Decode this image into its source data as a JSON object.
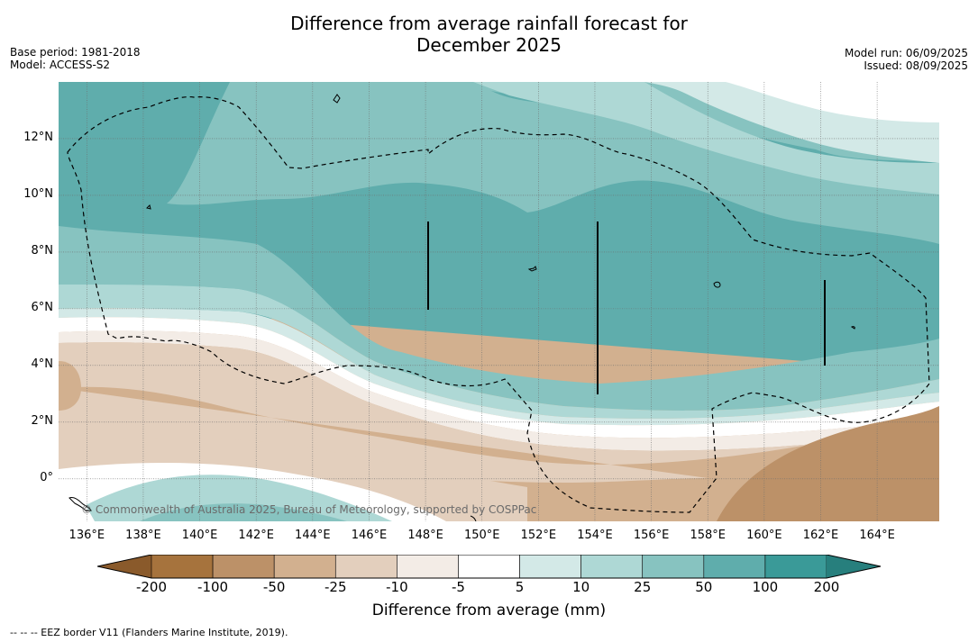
{
  "title_line1": "Difference from average rainfall forecast for",
  "title_line2": "December 2025",
  "meta_left": [
    "Base period: 1981-2018",
    "Model: ACCESS-S2"
  ],
  "meta_right": [
    "Model run: 06/09/2025",
    "Issued: 08/09/2025"
  ],
  "copyright": "© Commonwealth of Australia 2025, Bureau of Meteorology, supported by COSPPac",
  "colorbar": {
    "title": "Difference from average (mm)",
    "labels": [
      "-200",
      "-100",
      "-50",
      "-25",
      "-10",
      "-5",
      "5",
      "10",
      "25",
      "50",
      "100",
      "200"
    ],
    "colors": [
      "#a6733d",
      "#bc9168",
      "#d2b08f",
      "#e3cfbd",
      "#f3ece6",
      "#ffffff",
      "#d3e9e7",
      "#aed8d5",
      "#87c3c0",
      "#5fadac",
      "#3a9a98"
    ],
    "low_extend": "#8a5a2b",
    "high_extend": "#277f7d"
  },
  "footnote": "-- -- -- EEZ border V11 (Flanders Marine Institute, 2019).",
  "map": {
    "lon_ticks": [
      "136°E",
      "138°E",
      "140°E",
      "142°E",
      "144°E",
      "146°E",
      "148°E",
      "150°E",
      "152°E",
      "154°E",
      "156°E",
      "158°E",
      "160°E",
      "162°E",
      "164°E"
    ],
    "lat_ticks": [
      "12°N",
      "10°N",
      "8°N",
      "6°N",
      "4°N",
      "2°N",
      "0°"
    ],
    "lon_range": [
      135.0,
      166.2
    ],
    "lat_range": [
      -1.5,
      14.0
    ]
  }
}
